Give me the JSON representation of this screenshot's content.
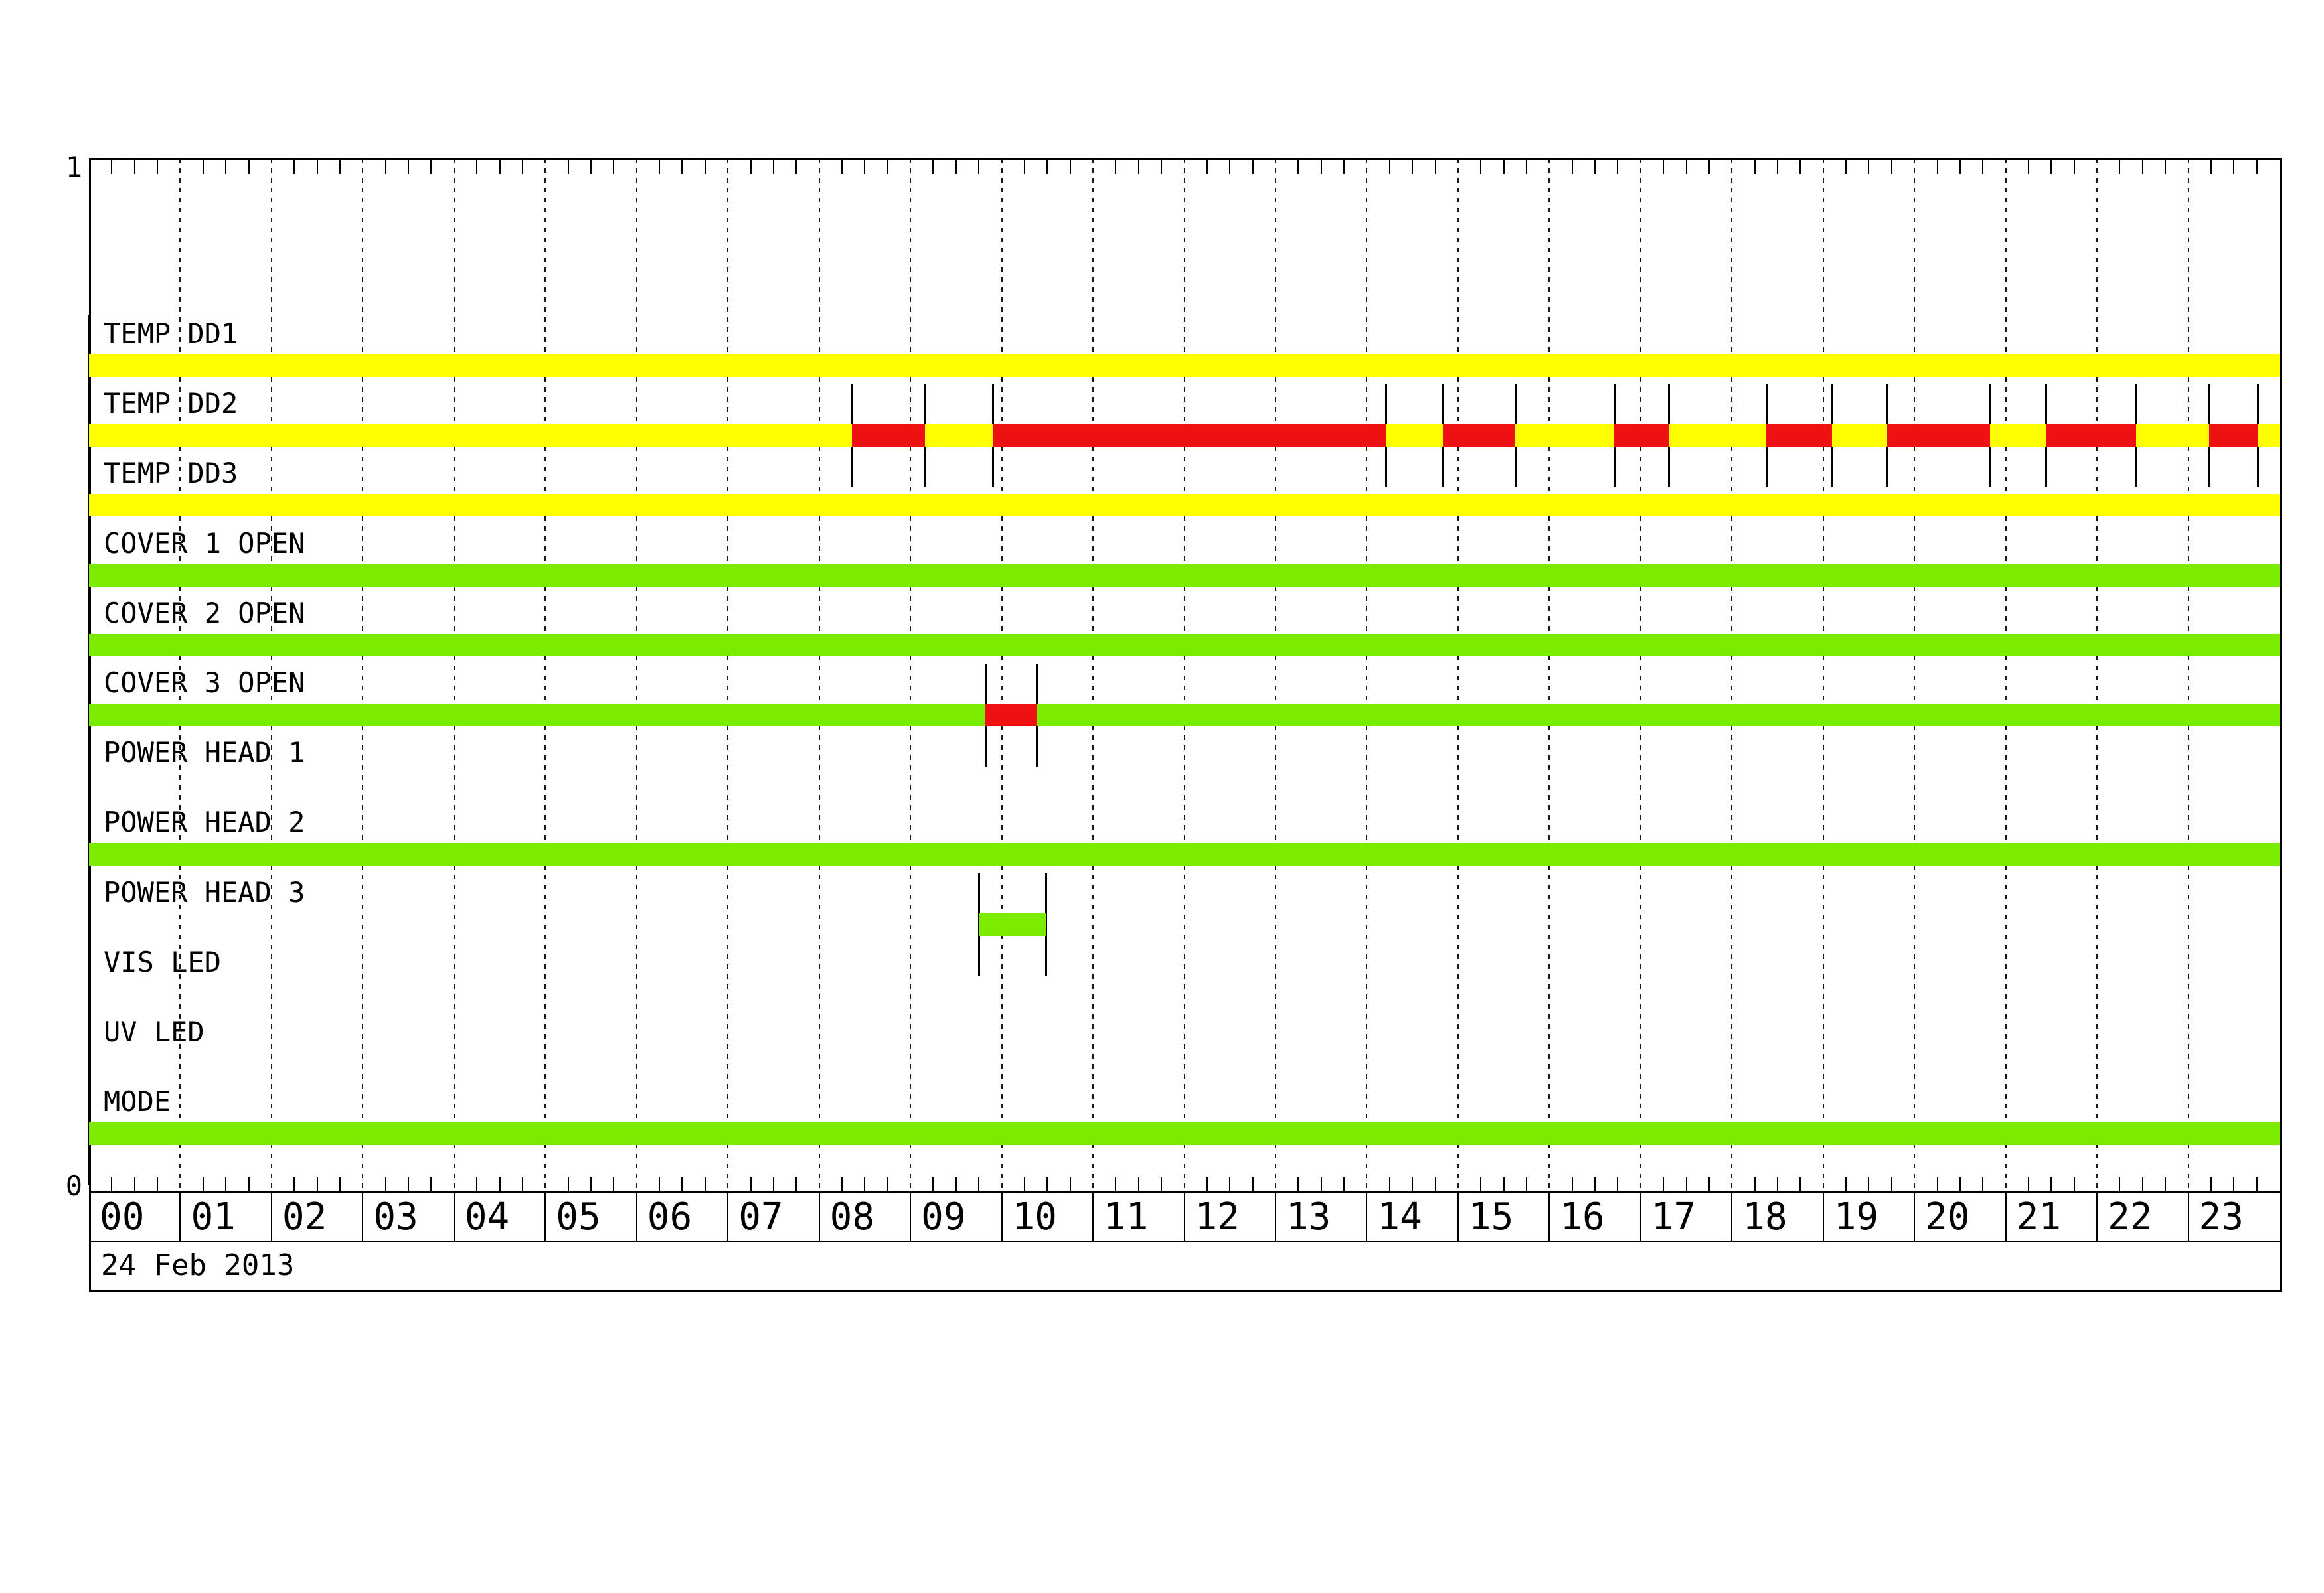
{
  "y_axis": {
    "top_label": "1",
    "bottom_label": "0"
  },
  "date_label": "24 Feb 2013",
  "colors": {
    "yellow": "#FFFF00",
    "green": "#7BEC00",
    "red": "#EE1111",
    "line": "#000000",
    "grid": "#1a1a1a",
    "background": "#FFFFFF"
  },
  "chart_data": {
    "type": "timeline-status",
    "title": "",
    "date": "24 Feb 2013",
    "x_unit": "hour",
    "x_range": [
      0,
      24
    ],
    "minor_ticks_per_hour": 4,
    "grid": "hourly-dotted",
    "hour_tick_labels": [
      "00",
      "01",
      "02",
      "03",
      "04",
      "05",
      "06",
      "07",
      "08",
      "09",
      "10",
      "11",
      "12",
      "13",
      "14",
      "15",
      "16",
      "17",
      "18",
      "19",
      "20",
      "21",
      "22",
      "23"
    ],
    "rows": [
      {
        "label": "TEMP DD1",
        "segments": [
          {
            "start": 0,
            "end": 24,
            "color": "yellow"
          }
        ],
        "markers": [
          0
        ]
      },
      {
        "label": "TEMP DD2",
        "segments": [
          {
            "start": 0,
            "end": 8.36,
            "color": "yellow"
          },
          {
            "start": 8.36,
            "end": 9.16,
            "color": "red"
          },
          {
            "start": 9.16,
            "end": 9.9,
            "color": "yellow"
          },
          {
            "start": 9.9,
            "end": 14.21,
            "color": "red"
          },
          {
            "start": 14.21,
            "end": 14.83,
            "color": "yellow"
          },
          {
            "start": 14.83,
            "end": 15.63,
            "color": "red"
          },
          {
            "start": 15.63,
            "end": 16.71,
            "color": "yellow"
          },
          {
            "start": 16.71,
            "end": 17.31,
            "color": "red"
          },
          {
            "start": 17.31,
            "end": 18.38,
            "color": "yellow"
          },
          {
            "start": 18.38,
            "end": 19.1,
            "color": "red"
          },
          {
            "start": 19.1,
            "end": 19.7,
            "color": "yellow"
          },
          {
            "start": 19.7,
            "end": 20.83,
            "color": "red"
          },
          {
            "start": 20.83,
            "end": 21.44,
            "color": "yellow"
          },
          {
            "start": 21.44,
            "end": 22.43,
            "color": "red"
          },
          {
            "start": 22.43,
            "end": 23.23,
            "color": "yellow"
          },
          {
            "start": 23.23,
            "end": 23.76,
            "color": "red"
          },
          {
            "start": 23.76,
            "end": 24,
            "color": "yellow"
          }
        ],
        "markers": [
          0,
          8.36,
          9.16,
          9.9,
          14.21,
          14.83,
          15.63,
          16.71,
          17.31,
          18.38,
          19.1,
          19.7,
          20.83,
          21.44,
          22.43,
          23.23,
          23.76
        ]
      },
      {
        "label": "TEMP DD3",
        "segments": [
          {
            "start": 0,
            "end": 24,
            "color": "yellow"
          }
        ],
        "markers": [
          0
        ]
      },
      {
        "label": "COVER 1 OPEN",
        "segments": [
          {
            "start": 0,
            "end": 24,
            "color": "green"
          }
        ],
        "markers": [
          0
        ]
      },
      {
        "label": "COVER 2 OPEN",
        "segments": [
          {
            "start": 0,
            "end": 24,
            "color": "green"
          }
        ],
        "markers": [
          0
        ]
      },
      {
        "label": "COVER 3 OPEN",
        "segments": [
          {
            "start": 0,
            "end": 9.82,
            "color": "green"
          },
          {
            "start": 9.82,
            "end": 10.38,
            "color": "red"
          },
          {
            "start": 10.38,
            "end": 24,
            "color": "green"
          }
        ],
        "markers": [
          0,
          9.82,
          10.38
        ]
      },
      {
        "label": "POWER HEAD 1",
        "segments": [],
        "markers": [
          0
        ]
      },
      {
        "label": "POWER HEAD 2",
        "segments": [
          {
            "start": 0,
            "end": 24,
            "color": "green"
          }
        ],
        "markers": [
          0
        ]
      },
      {
        "label": "POWER HEAD 3",
        "segments": [
          {
            "start": 9.75,
            "end": 10.48,
            "color": "green"
          }
        ],
        "markers": [
          0,
          9.75,
          10.48
        ]
      },
      {
        "label": "VIS LED",
        "segments": [],
        "markers": [
          0
        ]
      },
      {
        "label": "UV LED",
        "segments": [],
        "markers": [
          0
        ]
      },
      {
        "label": "MODE",
        "segments": [
          {
            "start": 0,
            "end": 24,
            "color": "green"
          }
        ],
        "markers": [
          0
        ]
      }
    ]
  }
}
